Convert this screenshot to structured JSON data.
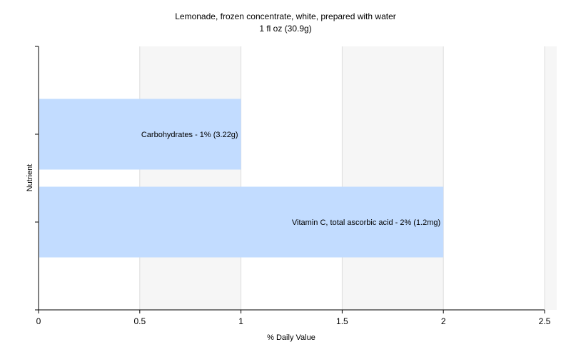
{
  "chart_data": {
    "type": "bar",
    "orientation": "horizontal",
    "title": "Lemonade, frozen concentrate, white, prepared with water",
    "subtitle": "1 fl oz (30.9g)",
    "xlabel": "% Daily Value",
    "ylabel": "Nutrient",
    "xlim": [
      0,
      2.5
    ],
    "xticks": [
      "0",
      "0.5",
      "1",
      "1.5",
      "2",
      "2.5"
    ],
    "xtick_values": [
      0,
      0.5,
      1,
      1.5,
      2,
      2.5
    ],
    "grid": true,
    "categories": [
      "Carbohydrates",
      "Vitamin C, total ascorbic acid"
    ],
    "values": [
      1,
      2
    ],
    "data_labels": [
      "Carbohydrates - 1% (3.22g)",
      "Vitamin C, total ascorbic acid - 2% (1.2mg)"
    ],
    "colors": {
      "bar": "#c2dcff",
      "band_light": "#f6f6f6",
      "band_white": "#ffffff",
      "gridline": "#dddddd",
      "axis": "#000000"
    }
  }
}
